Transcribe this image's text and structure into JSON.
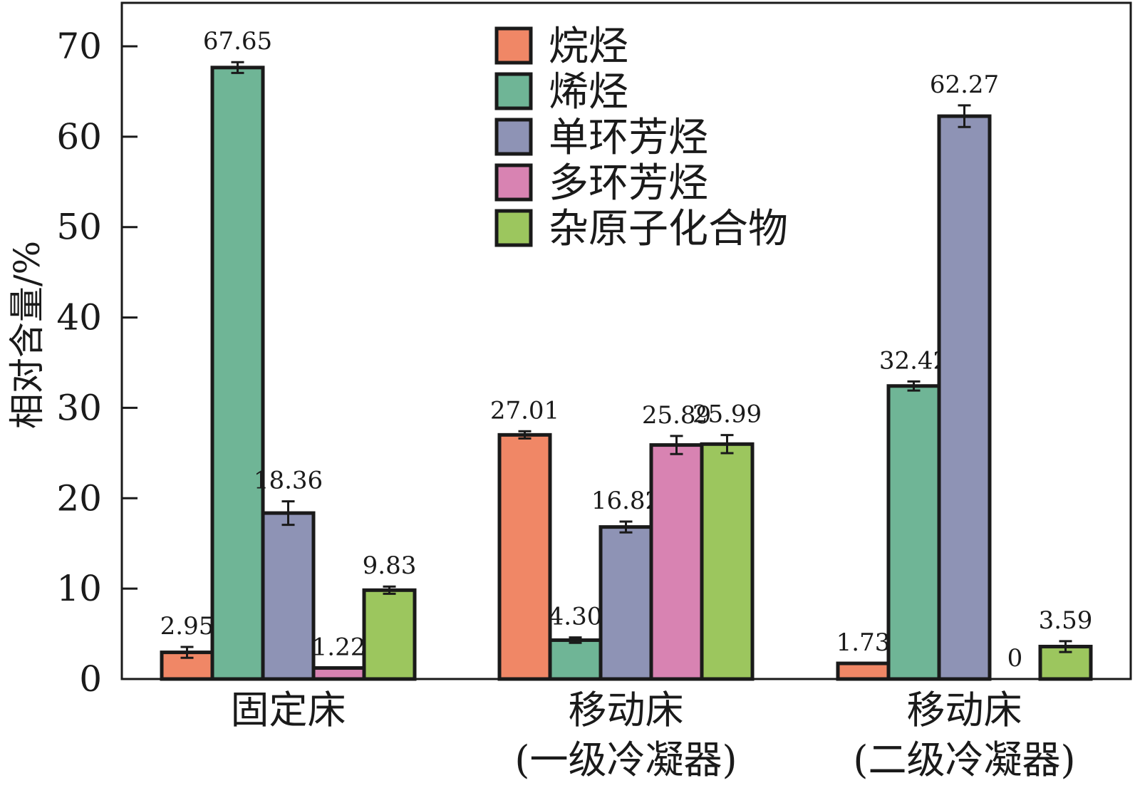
{
  "chart_data": {
    "type": "bar",
    "ylabel": "相对含量/%",
    "xlabel": "",
    "ylim": [
      0,
      70
    ],
    "yticks": [
      0,
      10,
      20,
      30,
      40,
      50,
      60,
      70
    ],
    "legend_position": "top-center",
    "error_bars": true,
    "categories": [
      {
        "lines": [
          "固定床"
        ]
      },
      {
        "lines": [
          "移动床",
          "(一级冷凝器)"
        ]
      },
      {
        "lines": [
          "移动床",
          "(二级冷凝器)"
        ]
      }
    ],
    "series": [
      {
        "name": "烷烃",
        "color": "#f08766",
        "values": [
          2.95,
          27.01,
          1.73
        ],
        "labels": [
          "2.95",
          "27.01",
          "1.73"
        ],
        "errors": [
          0.6,
          0.4,
          0
        ]
      },
      {
        "name": "烯烃",
        "color": "#6fb596",
        "values": [
          67.65,
          4.3,
          32.42
        ],
        "labels": [
          "67.65",
          "4.30",
          "32.42"
        ],
        "errors": [
          0.6,
          0.3,
          0.5
        ]
      },
      {
        "name": "单环芳烃",
        "color": "#8e93b5",
        "values": [
          18.36,
          16.82,
          62.27
        ],
        "labels": [
          "18.36",
          "16.82",
          "62.27"
        ],
        "errors": [
          1.3,
          0.6,
          1.2
        ]
      },
      {
        "name": "多环芳烃",
        "color": "#d883b2",
        "values": [
          1.22,
          25.89,
          0
        ],
        "labels": [
          "1.22",
          "25.89",
          "0"
        ],
        "errors": [
          0,
          1.0,
          0
        ]
      },
      {
        "name": "杂原子化合物",
        "color": "#9cc65e",
        "values": [
          9.83,
          25.99,
          3.59
        ],
        "labels": [
          "9.83",
          "25.99",
          "3.59"
        ],
        "errors": [
          0.4,
          1.0,
          0.6
        ]
      }
    ]
  }
}
